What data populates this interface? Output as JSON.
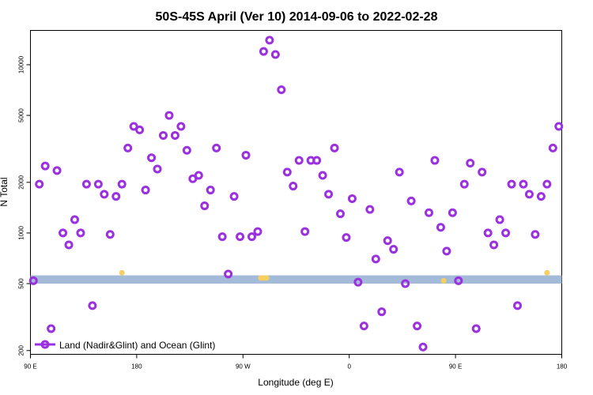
{
  "chart_data": {
    "type": "scatter",
    "title": "50S-45S April (Ver 10)   2014-09-06 to 2022-02-28",
    "xlabel": "Longitude (deg E)",
    "ylabel": "N Total",
    "x_scale": "linear",
    "y_scale": "log",
    "xlim": [
      90,
      270
    ],
    "ylim": [
      190,
      16000
    ],
    "x_ticks": [
      {
        "value": 90,
        "label": "90 E"
      },
      {
        "value": 126,
        "label": "180"
      },
      {
        "value": 162,
        "label": "90 W"
      },
      {
        "value": 198,
        "label": "0"
      },
      {
        "value": 234,
        "label": "90 E"
      },
      {
        "value": 270,
        "label": "180"
      }
    ],
    "y_ticks": [
      {
        "value": 200,
        "label": "200"
      },
      {
        "value": 500,
        "label": "500"
      },
      {
        "value": 1000,
        "label": "1000"
      },
      {
        "value": 2000,
        "label": "2000"
      },
      {
        "value": 5000,
        "label": "5000"
      },
      {
        "value": 10000,
        "label": "10000"
      }
    ],
    "band": {
      "y_low": 500,
      "y_high": 560,
      "color": "#a3bad8"
    },
    "series": [
      {
        "name": "Land (Nadir&Glint) and Ocean (Glint)",
        "color": "#9b30e0",
        "points": [
          [
            91,
            520
          ],
          [
            93,
            1950
          ],
          [
            95,
            2500
          ],
          [
            97,
            270
          ],
          [
            99,
            2350
          ],
          [
            101,
            1000
          ],
          [
            103,
            850
          ],
          [
            105,
            1200
          ],
          [
            107,
            1000
          ],
          [
            109,
            1950
          ],
          [
            111,
            370
          ],
          [
            113,
            1950
          ],
          [
            115,
            1700
          ],
          [
            117,
            980
          ],
          [
            119,
            1650
          ],
          [
            121,
            1950
          ],
          [
            123,
            3200
          ],
          [
            125,
            4300
          ],
          [
            127,
            4100
          ],
          [
            129,
            1800
          ],
          [
            131,
            2800
          ],
          [
            133,
            2400
          ],
          [
            135,
            3800
          ],
          [
            137,
            5000
          ],
          [
            139,
            3800
          ],
          [
            141,
            4300
          ],
          [
            143,
            3100
          ],
          [
            145,
            2100
          ],
          [
            147,
            2200
          ],
          [
            149,
            1450
          ],
          [
            151,
            1800
          ],
          [
            153,
            3200
          ],
          [
            155,
            950
          ],
          [
            157,
            570
          ],
          [
            159,
            1650
          ],
          [
            161,
            950
          ],
          [
            163,
            2900
          ],
          [
            165,
            950
          ],
          [
            167,
            1020
          ],
          [
            169,
            12000
          ],
          [
            171,
            14000
          ],
          [
            173,
            11500
          ],
          [
            175,
            7100
          ],
          [
            177,
            2300
          ],
          [
            179,
            1900
          ],
          [
            181,
            2700
          ],
          [
            183,
            1020
          ],
          [
            185,
            2700
          ],
          [
            187,
            2700
          ],
          [
            189,
            2200
          ],
          [
            191,
            1700
          ],
          [
            193,
            3200
          ],
          [
            195,
            1300
          ],
          [
            197,
            940
          ],
          [
            199,
            1600
          ],
          [
            201,
            510
          ],
          [
            203,
            280
          ],
          [
            205,
            1380
          ],
          [
            207,
            700
          ],
          [
            209,
            340
          ],
          [
            211,
            900
          ],
          [
            213,
            800
          ],
          [
            215,
            2300
          ],
          [
            217,
            500
          ],
          [
            219,
            1550
          ],
          [
            221,
            280
          ],
          [
            223,
            210
          ],
          [
            225,
            1320
          ],
          [
            227,
            2700
          ],
          [
            229,
            1080
          ],
          [
            231,
            780
          ],
          [
            233,
            1320
          ],
          [
            235,
            520
          ],
          [
            237,
            1950
          ],
          [
            239,
            2600
          ],
          [
            241,
            270
          ],
          [
            243,
            2300
          ],
          [
            245,
            1000
          ],
          [
            247,
            850
          ],
          [
            249,
            1200
          ],
          [
            251,
            1000
          ],
          [
            253,
            1950
          ],
          [
            255,
            370
          ],
          [
            257,
            1950
          ],
          [
            259,
            1700
          ],
          [
            261,
            980
          ],
          [
            263,
            1650
          ],
          [
            265,
            1950
          ],
          [
            267,
            3200
          ],
          [
            269,
            4300
          ]
        ]
      },
      {
        "color": "#f5d060",
        "points": [
          [
            121,
            580
          ],
          [
            168,
            540
          ],
          [
            169,
            540
          ],
          [
            170,
            540
          ],
          [
            230,
            520
          ],
          [
            265,
            580
          ]
        ]
      }
    ],
    "legend": {
      "position": "bottom-left",
      "entries": [
        "Land (Nadir&Glint) and Ocean (Glint)"
      ]
    },
    "grid": false
  }
}
